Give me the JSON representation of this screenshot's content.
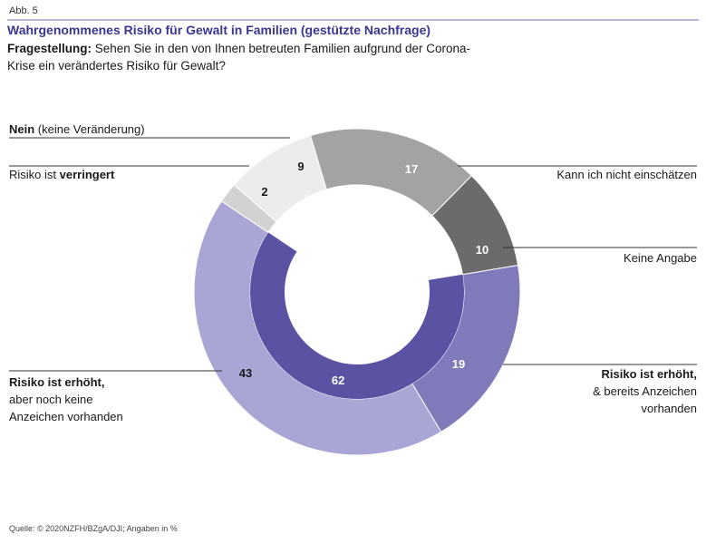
{
  "header": {
    "figure_number": "Abb. 5",
    "title": "Wahrgenommenes Risiko für Gewalt in Familien (gestützte Nachfrage)",
    "question_label": "Fragestellung:",
    "question_text": " Sehen Sie in den von Ihnen betreuten Familien aufgrund der Corona-Krise ein verändertes Risiko für Gewalt?"
  },
  "footer": {
    "source": "Quelle: © 2020NZFH/BZgA/DJI; Angaben in %"
  },
  "chart_data": {
    "type": "donut",
    "unit": "%",
    "outer_ring": [
      {
        "value": 9,
        "color": "#ececec",
        "label_color": "#1a1a1a"
      },
      {
        "value": 17,
        "color": "#a3a3a3",
        "label_color": "#ffffff"
      },
      {
        "value": 10,
        "color": "#6b6b6b",
        "label_color": "#ffffff"
      },
      {
        "value": 19,
        "color": "#7f7ab9",
        "label_color": "#ffffff"
      },
      {
        "value": 43,
        "color": "#a9a6d5",
        "label_color": "#1a1a1a"
      },
      {
        "value": 2,
        "color": "#d2d2d2",
        "label_color": "#1a1a1a"
      }
    ],
    "inner_ring": [
      {
        "value": 62,
        "color": "#5a52a3",
        "label_color": "#ffffff",
        "spans": "19 + 43"
      }
    ],
    "callouts": [
      {
        "parts": [
          {
            "text": "Nein",
            "bold": true
          },
          {
            "text": " (keine Veränderung)",
            "bold": false
          }
        ],
        "side": "left"
      },
      {
        "parts": [
          {
            "text": "Risiko ist ",
            "bold": false
          },
          {
            "text": "verringert",
            "bold": true
          }
        ],
        "side": "left"
      },
      {
        "parts": [
          {
            "text": "Kann ich nicht einschätzen",
            "bold": false
          }
        ],
        "side": "right"
      },
      {
        "parts": [
          {
            "text": "Keine Angabe",
            "bold": false
          }
        ],
        "side": "right"
      },
      {
        "parts": [
          {
            "text": "Risiko ist erhöht,",
            "bold": true
          }
        ],
        "extra_lines": [
          "& bereits Anzeichen",
          "vorhanden"
        ],
        "side": "right"
      },
      {
        "parts": [
          {
            "text": "Risiko ist erhöht,",
            "bold": true
          }
        ],
        "extra_lines": [
          "aber noch keine",
          "Anzeichen vorhanden"
        ],
        "side": "left"
      }
    ]
  }
}
